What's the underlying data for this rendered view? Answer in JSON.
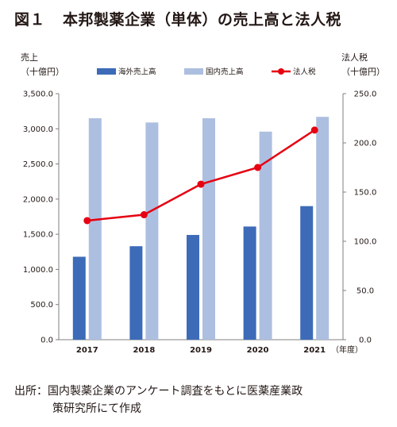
{
  "title": {
    "figure_no": "図１",
    "text": "本邦製薬企業（単体）の売上高と法人税"
  },
  "left_axis_unit": [
    "売上",
    "（十億円）"
  ],
  "right_axis_unit": [
    "法人税",
    "（十億円）"
  ],
  "x_unit": "（年度）",
  "source": {
    "line1": "出所：国内製薬企業のアンケート調査をもとに医薬産業政",
    "line2": "策研究所にて作成"
  },
  "chart_data": {
    "type": "bar",
    "title": "本邦製薬企業（単体）の売上高と法人税",
    "categories": [
      "2017",
      "2018",
      "2019",
      "2020",
      "2021"
    ],
    "series": [
      {
        "name": "海外売上高",
        "type": "bar",
        "axis": "left",
        "color": "#3d6bb8",
        "values": [
          1180,
          1330,
          1490,
          1610,
          1900
        ]
      },
      {
        "name": "国内売上高",
        "type": "bar",
        "axis": "left",
        "color": "#adbfe0",
        "values": [
          3150,
          3090,
          3150,
          2960,
          3170
        ]
      },
      {
        "name": "法人税",
        "type": "line",
        "axis": "right",
        "color": "#e60012",
        "values": [
          121,
          127,
          158,
          175,
          213
        ]
      }
    ],
    "y_left": {
      "min": 0,
      "max": 3500,
      "ticks": [
        "0.0",
        "500.0",
        "1,000.0",
        "1,500.0",
        "2,000.0",
        "2,500.0",
        "3,000.0",
        "3,500.0"
      ]
    },
    "y_right": {
      "min": 0,
      "max": 250,
      "ticks": [
        "0.0",
        "50.0",
        "100.0",
        "150.0",
        "200.0",
        "250.0"
      ]
    },
    "legend_position": "top",
    "grid": false
  }
}
